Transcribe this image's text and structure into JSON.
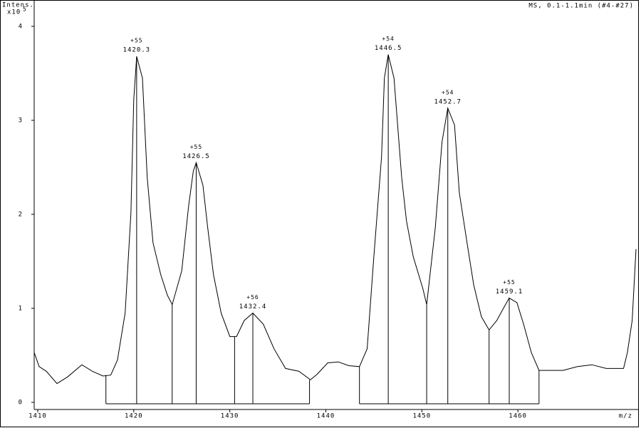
{
  "chart_data": {
    "type": "line",
    "title": "MS, 0.1-1.1min (#4-#27)",
    "y_label": "Intens.",
    "y_scale_label": "x10",
    "y_scale_exponent": "5",
    "x_label": "m/z",
    "color": "#000000",
    "xlim": [
      1409.63,
      1472.3
    ],
    "ylim": [
      -0.076,
      4.28
    ],
    "xticks": [
      1410,
      1420,
      1430,
      1440,
      1450,
      1460
    ],
    "yticks": [
      0,
      1,
      2,
      3,
      4
    ],
    "trace": {
      "x": [
        1409.63,
        1410.15,
        1410.9,
        1412.0,
        1413.1,
        1414.6,
        1415.7,
        1416.8,
        1417.6,
        1418.3,
        1419.1,
        1419.7,
        1420.0,
        1420.3,
        1420.9,
        1421.4,
        1422.0,
        1422.8,
        1423.5,
        1424.0,
        1425.0,
        1425.7,
        1426.2,
        1426.5,
        1427.2,
        1427.7,
        1428.3,
        1429.1,
        1430.0,
        1430.7,
        1431.5,
        1432.4,
        1433.5,
        1434.6,
        1435.8,
        1437.2,
        1438.4,
        1439.1,
        1440.2,
        1441.3,
        1442.4,
        1443.5,
        1444.3,
        1445.0,
        1445.8,
        1446.1,
        1446.5,
        1447.1,
        1447.9,
        1448.4,
        1449.1,
        1450.1,
        1450.5,
        1451.4,
        1452.1,
        1452.7,
        1453.4,
        1453.9,
        1454.7,
        1455.4,
        1456.2,
        1457.0,
        1457.8,
        1458.6,
        1459.1,
        1459.9,
        1460.6,
        1461.4,
        1462.2,
        1463.2,
        1464.7,
        1466.2,
        1467.7,
        1469.2,
        1471.0,
        1471.4,
        1471.9,
        1472.3
      ],
      "y": [
        0.53,
        0.38,
        0.33,
        0.2,
        0.27,
        0.4,
        0.33,
        0.28,
        0.29,
        0.45,
        0.95,
        2.01,
        3.22,
        3.68,
        3.45,
        2.39,
        1.7,
        1.36,
        1.14,
        1.04,
        1.4,
        2.08,
        2.46,
        2.55,
        2.31,
        1.86,
        1.36,
        0.95,
        0.7,
        0.7,
        0.87,
        0.95,
        0.83,
        0.57,
        0.36,
        0.33,
        0.24,
        0.3,
        0.42,
        0.43,
        0.39,
        0.38,
        0.57,
        1.55,
        2.61,
        3.45,
        3.7,
        3.45,
        2.39,
        1.93,
        1.55,
        1.21,
        1.04,
        1.86,
        2.77,
        3.13,
        2.95,
        2.23,
        1.7,
        1.25,
        0.91,
        0.77,
        0.87,
        1.02,
        1.11,
        1.06,
        0.83,
        0.53,
        0.34,
        0.34,
        0.34,
        0.38,
        0.4,
        0.36,
        0.36,
        0.53,
        0.87,
        1.63
      ]
    },
    "peaks": [
      {
        "charge": "+55",
        "x": 1420.3,
        "y": 3.68
      },
      {
        "charge": "+55",
        "x": 1426.5,
        "y": 2.55
      },
      {
        "charge": "+56",
        "x": 1432.4,
        "y": 0.95
      },
      {
        "charge": "+54",
        "x": 1446.5,
        "y": 3.7
      },
      {
        "charge": "+54",
        "x": 1452.7,
        "y": 3.13
      },
      {
        "charge": "+55",
        "x": 1459.1,
        "y": 1.11
      }
    ],
    "integration_boundaries": {
      "x": [
        1417.1,
        1424.0,
        1430.5,
        1438.3,
        1443.5,
        1450.5,
        1457.0,
        1462.2
      ],
      "y": [
        0.29,
        1.04,
        0.7,
        0.24,
        0.38,
        1.04,
        0.77,
        0.34
      ]
    }
  }
}
